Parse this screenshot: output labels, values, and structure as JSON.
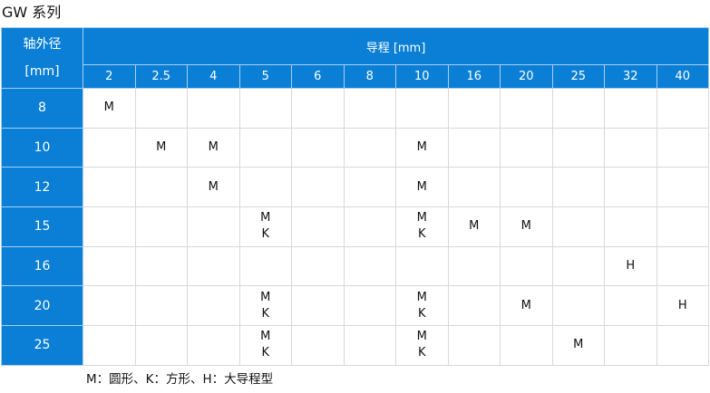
{
  "title": "GW 系列",
  "header": {
    "shaft_label": "轴外径",
    "shaft_unit": "[mm]",
    "lead_label": "导程 [mm]",
    "leads": [
      "2",
      "2.5",
      "4",
      "5",
      "6",
      "8",
      "10",
      "16",
      "20",
      "25",
      "32",
      "40"
    ]
  },
  "rows": [
    {
      "shaft": "8",
      "cells": [
        [
          "M"
        ],
        [],
        [],
        [],
        [],
        [],
        [],
        [],
        [],
        [],
        [],
        []
      ]
    },
    {
      "shaft": "10",
      "cells": [
        [],
        [
          "M"
        ],
        [
          "M"
        ],
        [],
        [],
        [],
        [
          "M"
        ],
        [],
        [],
        [],
        [],
        []
      ]
    },
    {
      "shaft": "12",
      "cells": [
        [],
        [],
        [
          "M"
        ],
        [],
        [],
        [],
        [
          "M"
        ],
        [],
        [],
        [],
        [],
        []
      ]
    },
    {
      "shaft": "15",
      "cells": [
        [],
        [],
        [],
        [
          "M",
          "K"
        ],
        [],
        [],
        [
          "M",
          "K"
        ],
        [
          "M"
        ],
        [
          "M"
        ],
        [],
        [],
        []
      ]
    },
    {
      "shaft": "16",
      "cells": [
        [],
        [],
        [],
        [],
        [],
        [],
        [],
        [],
        [],
        [],
        [
          "H"
        ],
        []
      ]
    },
    {
      "shaft": "20",
      "cells": [
        [],
        [],
        [],
        [
          "M",
          "K"
        ],
        [],
        [],
        [
          "M",
          "K"
        ],
        [],
        [
          "M"
        ],
        [],
        [],
        [
          "H"
        ]
      ]
    },
    {
      "shaft": "25",
      "cells": [
        [],
        [],
        [],
        [
          "M",
          "K"
        ],
        [],
        [],
        [
          "M",
          "K"
        ],
        [],
        [],
        [
          "M"
        ],
        [],
        []
      ]
    }
  ],
  "legend": "M：圆形、K：方形、H：大导程型",
  "colors": {
    "header_bg": "#0a7fd5",
    "grid": "#d9d9d9"
  }
}
